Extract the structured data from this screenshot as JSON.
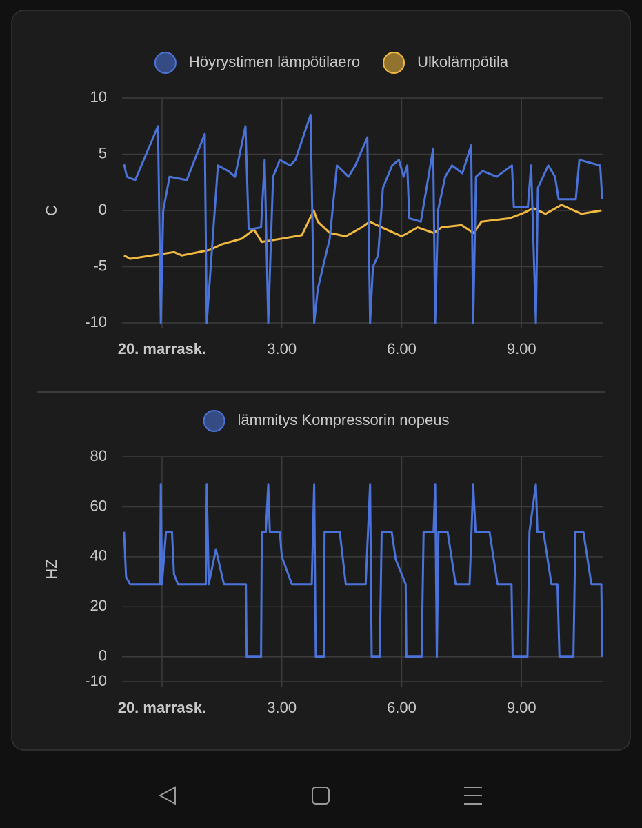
{
  "chart_data": [
    {
      "type": "line",
      "ylabel": "C",
      "grid": true,
      "legend_position": "top",
      "xlim": [
        -1,
        11.05
      ],
      "xticks": [
        {
          "value": 0,
          "label": "20. marrask."
        },
        {
          "value": 3,
          "label": "3.00"
        },
        {
          "value": 6,
          "label": "6.00"
        },
        {
          "value": 9,
          "label": "9.00"
        }
      ],
      "ylim": [
        -10,
        10
      ],
      "yticks": [
        -10,
        -5,
        0,
        5,
        10
      ],
      "series": [
        {
          "name": "Höyrystimen lämpötilaero",
          "color": "#4a72d8",
          "x": [
            -0.95,
            -0.88,
            -0.67,
            -0.1,
            -0.03,
            0.03,
            0.19,
            0.62,
            1.07,
            1.12,
            1.4,
            1.66,
            1.83,
            2.09,
            2.17,
            2.48,
            2.57,
            2.66,
            2.78,
            2.95,
            3.21,
            3.34,
            3.72,
            3.81,
            3.9,
            4.03,
            4.2,
            4.38,
            4.67,
            4.84,
            5.14,
            5.21,
            5.28,
            5.41,
            5.53,
            5.76,
            5.93,
            6.05,
            6.14,
            6.19,
            6.48,
            6.79,
            6.84,
            6.91,
            7.09,
            7.26,
            7.52,
            7.74,
            7.79,
            7.86,
            8.03,
            8.38,
            8.76,
            8.81,
            9.16,
            9.24,
            9.36,
            9.41,
            9.67,
            9.84,
            9.93,
            10.36,
            10.45,
            10.97,
            11.02
          ],
          "values": [
            4.1,
            3,
            2.7,
            7.5,
            -10,
            0,
            3,
            2.7,
            6.8,
            -10,
            4,
            3.5,
            3,
            7.5,
            -1.7,
            -1.5,
            4.5,
            -10,
            3,
            4.5,
            4,
            4.5,
            8.5,
            -10,
            -7,
            -5,
            -2.5,
            4,
            3,
            4,
            6.5,
            -10,
            -5,
            -4,
            2,
            4,
            4.5,
            3,
            4,
            -0.7,
            -1,
            5.5,
            -10,
            0,
            3,
            4,
            3.3,
            5.8,
            -10,
            3,
            3.5,
            3,
            4,
            0.3,
            0.3,
            4,
            -10,
            2,
            4,
            3,
            1,
            1,
            4.5,
            4,
            1
          ]
        },
        {
          "name": "Ulkolämpötila",
          "color": "#f2b940",
          "x": [
            -0.95,
            -0.8,
            0.3,
            0.5,
            1.2,
            1.5,
            2.0,
            2.3,
            2.5,
            3.0,
            3.5,
            3.8,
            3.9,
            4.2,
            4.6,
            5.0,
            5.2,
            5.5,
            6.0,
            6.4,
            6.8,
            7.0,
            7.5,
            7.8,
            8.0,
            8.7,
            9.0,
            9.3,
            9.6,
            10.0,
            10.5,
            11.0
          ],
          "values": [
            -4,
            -4.3,
            -3.7,
            -4,
            -3.5,
            -3,
            -2.5,
            -1.7,
            -2.8,
            -2.5,
            -2.2,
            0,
            -1,
            -2,
            -2.3,
            -1.5,
            -1,
            -1.5,
            -2.3,
            -1.5,
            -2,
            -1.5,
            -1.3,
            -2,
            -1,
            -0.7,
            -0.3,
            0.2,
            -0.3,
            0.5,
            -0.3,
            0
          ]
        }
      ]
    },
    {
      "type": "line",
      "ylabel": "HZ",
      "grid": true,
      "legend_position": "top",
      "xlim": [
        -1,
        11.05
      ],
      "xticks": [
        {
          "value": 0,
          "label": "20. marrask."
        },
        {
          "value": 3,
          "label": "3.00"
        },
        {
          "value": 6,
          "label": "6.00"
        },
        {
          "value": 9,
          "label": "9.00"
        }
      ],
      "ylim": [
        -10,
        80
      ],
      "yticks": [
        -10,
        0,
        20,
        40,
        60,
        80
      ],
      "series": [
        {
          "name": "lämmitys Kompressorin nopeus",
          "color": "#4a72d8",
          "x": [
            -0.95,
            -0.9,
            -0.8,
            -0.05,
            -0.03,
            0.0,
            0.1,
            0.25,
            0.3,
            0.4,
            1.1,
            1.12,
            1.17,
            1.35,
            1.55,
            2.1,
            2.12,
            2.48,
            2.5,
            2.6,
            2.66,
            2.7,
            2.95,
            3.0,
            3.25,
            3.75,
            3.81,
            3.85,
            4.05,
            4.07,
            4.45,
            4.6,
            5.1,
            5.21,
            5.25,
            5.45,
            5.5,
            5.75,
            5.85,
            6.1,
            6.12,
            6.5,
            6.55,
            6.8,
            6.84,
            6.88,
            6.92,
            7.15,
            7.35,
            7.7,
            7.79,
            7.85,
            8.2,
            8.4,
            8.75,
            8.78,
            9.15,
            9.2,
            9.36,
            9.4,
            9.55,
            9.75,
            9.9,
            9.95,
            10.3,
            10.35,
            10.55,
            10.75,
            11.0,
            11.02
          ],
          "values": [
            50,
            32,
            29,
            29,
            69,
            29,
            50,
            50,
            33,
            29,
            29,
            69,
            29,
            43,
            29,
            29,
            0,
            0,
            50,
            50,
            69,
            50,
            50,
            40,
            29,
            29,
            69,
            0,
            0,
            50,
            50,
            29,
            29,
            69,
            0,
            0,
            50,
            50,
            39,
            29,
            0,
            0,
            50,
            50,
            69,
            0,
            50,
            50,
            29,
            29,
            69,
            50,
            50,
            29,
            29,
            0,
            0,
            50,
            69,
            50,
            50,
            29,
            29,
            0,
            0,
            50,
            50,
            29,
            29,
            0
          ]
        }
      ]
    }
  ]
}
